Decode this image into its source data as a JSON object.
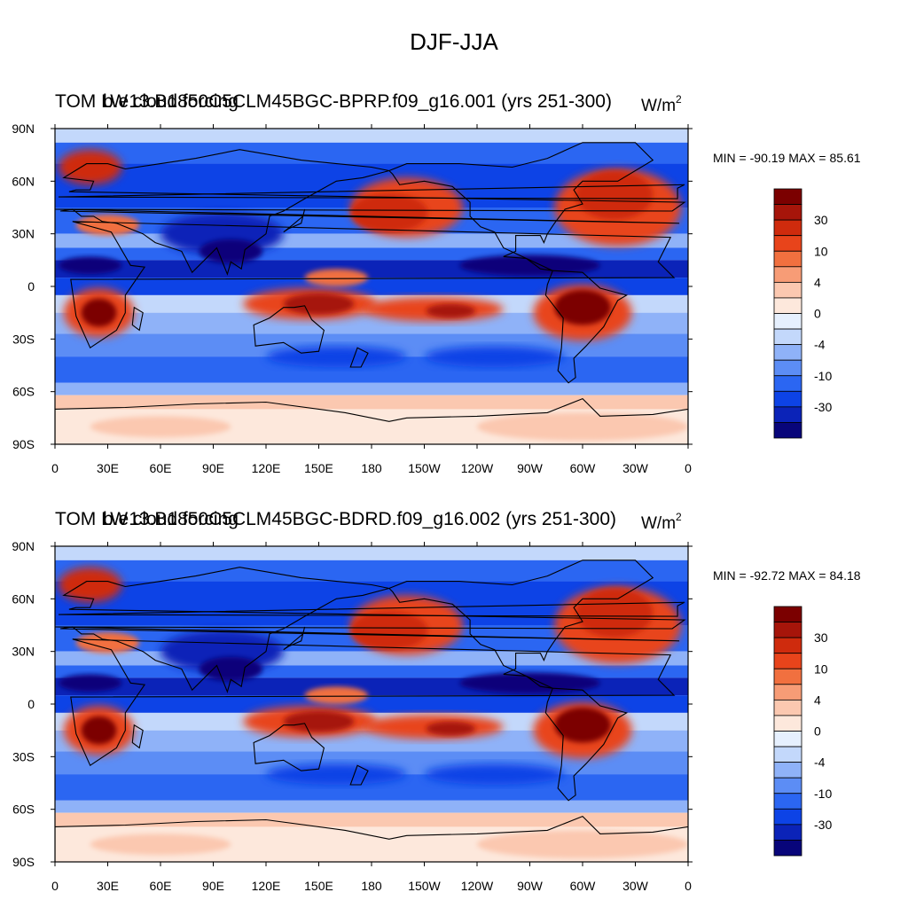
{
  "figure_title": "DJF-JJA",
  "colors": {
    "levels": [
      "#08057a",
      "#0b23b8",
      "#0d43e6",
      "#2b66f2",
      "#5c8df5",
      "#8fb2f8",
      "#c3d8fb",
      "#e6f0fe",
      "#fde8dc",
      "#fbc8b0",
      "#f79c76",
      "#f1703f",
      "#e8441b",
      "#cf2b0d",
      "#a6150a",
      "#7b0000"
    ],
    "ocean_blue": "#0d43e6",
    "subtropic_red": "#e8441b"
  },
  "chart_data": [
    {
      "type": "heatmap",
      "variable_label": "TOM LW cloud forcing",
      "case_label": "b.e13.B1850C5CLM45BGC-BPRP.f09_g16.001 (yrs 251-300)",
      "units": "W/m",
      "units_exp": "2",
      "min_max_text": "MIN = -90.19 MAX =  85.61",
      "min": -90.19,
      "max": 85.61,
      "xticks": [
        "0",
        "30E",
        "60E",
        "90E",
        "120E",
        "150E",
        "180",
        "150W",
        "120W",
        "90W",
        "60W",
        "30W",
        "0"
      ],
      "yticks": [
        "90N",
        "60N",
        "30N",
        "0",
        "30S",
        "60S",
        "90S"
      ],
      "colorbar_labels": [
        "30",
        "10",
        "4",
        "0",
        "-4",
        "-10",
        "-30"
      ],
      "colorbar_levels": 16
    },
    {
      "type": "heatmap",
      "variable_label": "TOM LW cloud forcing",
      "case_label": "b.e13.B1850C5CLM45BGC-BDRD.f09_g16.002 (yrs 251-300)",
      "units": "W/m",
      "units_exp": "2",
      "min_max_text": "MIN = -92.72 MAX =  84.18",
      "min": -92.72,
      "max": 84.18,
      "xticks": [
        "0",
        "30E",
        "60E",
        "90E",
        "120E",
        "150E",
        "180",
        "150W",
        "120W",
        "90W",
        "60W",
        "30W",
        "0"
      ],
      "yticks": [
        "90N",
        "60N",
        "30N",
        "0",
        "30S",
        "60S",
        "90S"
      ],
      "colorbar_labels": [
        "30",
        "10",
        "4",
        "0",
        "-4",
        "-10",
        "-30"
      ],
      "colorbar_levels": 16
    }
  ]
}
